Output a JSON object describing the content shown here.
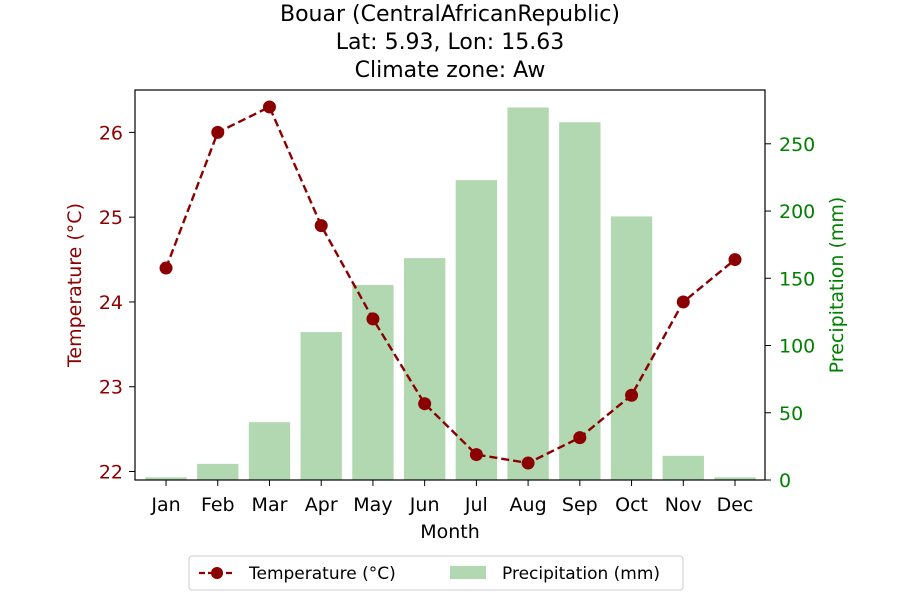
{
  "chart_data": {
    "type": "bar+line",
    "title_lines": [
      "Bouar (CentralAfricanRepublic)",
      "Lat: 5.93, Lon: 15.63",
      "Climate zone: Aw"
    ],
    "xlabel": "Month",
    "categories": [
      "Jan",
      "Feb",
      "Mar",
      "Apr",
      "May",
      "Jun",
      "Jul",
      "Aug",
      "Sep",
      "Oct",
      "Nov",
      "Dec"
    ],
    "temperature": {
      "name": "Temperature (°C)",
      "axis_label": "Temperature (°C)",
      "values": [
        24.4,
        26.0,
        26.3,
        24.9,
        23.8,
        22.8,
        22.2,
        22.1,
        22.4,
        22.9,
        24.0,
        24.5
      ],
      "ylim": [
        21.9,
        26.5
      ],
      "ticks": [
        22,
        23,
        24,
        25,
        26
      ],
      "color": "#8b0000",
      "style": "dashed line with circle markers"
    },
    "precipitation": {
      "name": "Precipitation (mm)",
      "axis_label": "Precipitation (mm)",
      "values": [
        2,
        12,
        43,
        110,
        145,
        165,
        223,
        277,
        266,
        196,
        18,
        2
      ],
      "ylim": [
        0,
        290
      ],
      "ticks": [
        0,
        50,
        100,
        150,
        200,
        250
      ],
      "color": "#b2d8b2",
      "axis_color": "#008000"
    },
    "legend_position": "below"
  }
}
